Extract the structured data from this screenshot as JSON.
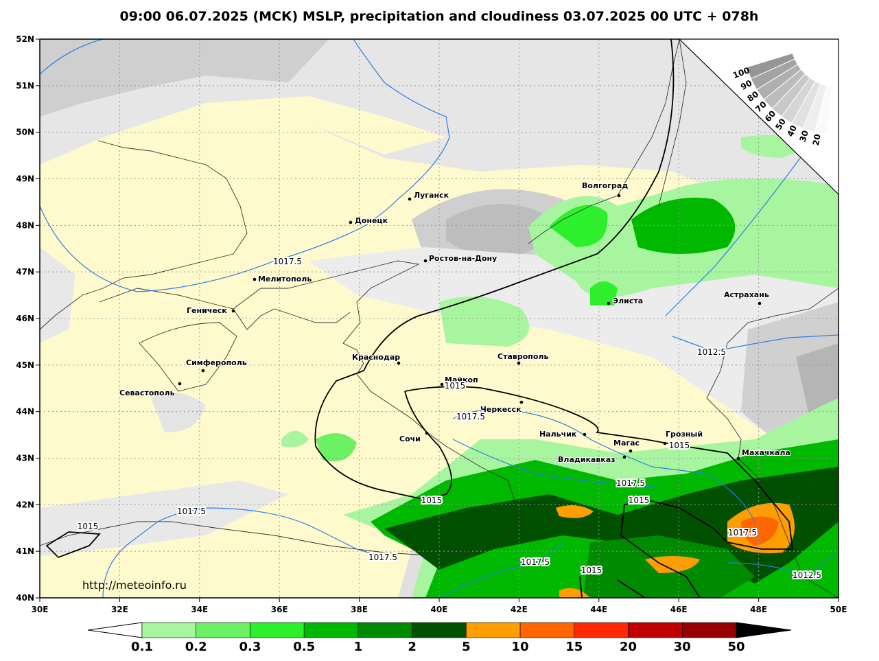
{
  "title": "09:00 06.07.2025 (МСК) MSLP, precipitation and cloudiness 03.07.2025 00 UTC + 078h",
  "url": "http://meteoinfo.ru",
  "lat_labels": [
    "52N",
    "51N",
    "50N",
    "49N",
    "48N",
    "47N",
    "46N",
    "45N",
    "44N",
    "43N",
    "42N",
    "41N",
    "40N"
  ],
  "lon_labels": [
    "30E",
    "32E",
    "34E",
    "36E",
    "38E",
    "40E",
    "42E",
    "44E",
    "46E",
    "48E",
    "50E"
  ],
  "cities": [
    "Волгоград",
    "Луганск",
    "Донецк",
    "Ростов-на-Дону",
    "Мелитополь",
    "Геническ",
    "Элиста",
    "Астрахань",
    "Симферополь",
    "Севастополь",
    "Краснодар",
    "Ставрополь",
    "Майкоп",
    "Черкесск",
    "Нальчик",
    "Грозный",
    "Магас",
    "Владикавказ",
    "Сочи",
    "Махачкала"
  ],
  "isobar_labels": [
    "1017.5",
    "1015",
    "1017.5",
    "1015",
    "1015",
    "1017.5",
    "1015",
    "1017.5",
    "1012.5",
    "1015",
    "1017.5",
    "1017.5",
    "1017.5",
    "1015",
    "1012.5"
  ],
  "cloud_scale": [
    "100",
    "90",
    "80",
    "70",
    "60",
    "50",
    "40",
    "30",
    "20"
  ],
  "precip_scale": {
    "labels": [
      "0.1",
      "0.2",
      "0.3",
      "0.5",
      "1",
      "2",
      "5",
      "10",
      "15",
      "20",
      "30",
      "50"
    ],
    "colors": [
      "#a8f5a0",
      "#6cf064",
      "#2cf02c",
      "#00b800",
      "#008a00",
      "#005000",
      "#ff9e00",
      "#ff6600",
      "#ff2800",
      "#c00000",
      "#960000"
    ]
  }
}
